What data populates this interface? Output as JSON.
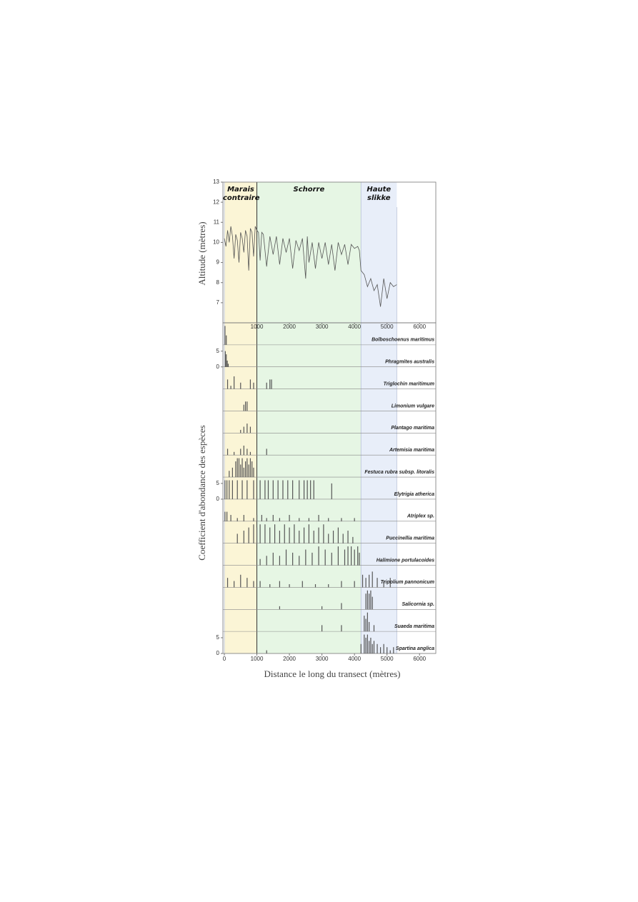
{
  "chart_data": [
    {
      "type": "line",
      "ylabel": "Altitude (mètres)",
      "xlim": [
        0,
        6500
      ],
      "ylim": [
        6,
        13
      ],
      "yticks": [
        7,
        8,
        9,
        10,
        11,
        12,
        13
      ],
      "xticks": [
        1000,
        2000,
        3000,
        4000,
        5000,
        6000
      ],
      "zones": [
        {
          "label": "Marais contraire",
          "start": 0,
          "end": 1000,
          "color": "#fbf5d6"
        },
        {
          "label": "Schorre",
          "start": 1000,
          "end": 4200,
          "color": "#e6f6e4"
        },
        {
          "label": "Haute slikke",
          "start": 4200,
          "end": 5300,
          "color": "#e8eef9"
        }
      ],
      "x": [
        0,
        50,
        100,
        150,
        200,
        250,
        300,
        350,
        400,
        450,
        500,
        550,
        600,
        650,
        700,
        750,
        800,
        850,
        900,
        950,
        1000,
        1050,
        1100,
        1150,
        1200,
        1300,
        1400,
        1500,
        1600,
        1700,
        1800,
        1900,
        2000,
        2100,
        2200,
        2300,
        2400,
        2500,
        2550,
        2600,
        2700,
        2800,
        2900,
        3000,
        3100,
        3200,
        3300,
        3400,
        3500,
        3600,
        3700,
        3800,
        3900,
        4000,
        4100,
        4150,
        4200,
        4300,
        4400,
        4500,
        4600,
        4700,
        4800,
        4900,
        5000,
        5100,
        5200,
        5300
      ],
      "series": [
        {
          "color": "#555555",
          "values": [
            10.2,
            9.8,
            10.6,
            10.0,
            10.8,
            10.3,
            9.2,
            10.4,
            10.1,
            9.0,
            10.5,
            10.2,
            9.5,
            10.6,
            10.3,
            8.6,
            10.7,
            10.5,
            9.3,
            10.8,
            10.6,
            10.5,
            9.1,
            10.5,
            10.4,
            8.8,
            10.3,
            9.4,
            10.3,
            8.9,
            10.2,
            9.5,
            10.2,
            8.7,
            10.1,
            9.6,
            10.2,
            8.2,
            10.3,
            9.0,
            10.0,
            8.7,
            10.0,
            9.2,
            10.0,
            8.9,
            9.9,
            8.6,
            10.0,
            9.4,
            9.9,
            8.9,
            9.9,
            9.7,
            9.8,
            9.6,
            8.6,
            8.4,
            7.8,
            8.2,
            7.6,
            7.9,
            6.8,
            8.2,
            7.2,
            8.0,
            7.8,
            7.9
          ]
        }
      ]
    },
    {
      "type": "strip",
      "xlabel": "Distance le long du transect (mètres)",
      "ylabel": "Coefficient d'abondance des espèces",
      "xlim": [
        0,
        6500
      ],
      "ylim": [
        0,
        7
      ],
      "xticks": [
        0,
        1000,
        2000,
        3000,
        4000,
        5000,
        6000
      ],
      "color": "#555555",
      "species": [
        {
          "name": "Bolboschoenus maritimus",
          "x": [
            20,
            60
          ],
          "values": [
            6,
            3
          ]
        },
        {
          "name": "Phragmites australis",
          "x": [
            30,
            60,
            90,
            120
          ],
          "values": [
            5,
            4,
            2,
            1
          ],
          "yticks": [
            0,
            5
          ]
        },
        {
          "name": "Triglochin maritimum",
          "x": [
            100,
            200,
            300,
            500,
            800,
            900,
            1300,
            1400,
            1450
          ],
          "values": [
            3,
            1,
            4,
            2,
            3,
            2,
            2,
            3,
            3
          ]
        },
        {
          "name": "Limonium vulgare",
          "x": [
            600,
            650,
            700
          ],
          "values": [
            2,
            3,
            3
          ]
        },
        {
          "name": "Plantago maritima",
          "x": [
            500,
            600,
            700,
            800
          ],
          "values": [
            1,
            2,
            3,
            2
          ]
        },
        {
          "name": "Artemisia maritima",
          "x": [
            100,
            300,
            500,
            600,
            700,
            800,
            1300
          ],
          "values": [
            2,
            1,
            2,
            3,
            2,
            1,
            2
          ]
        },
        {
          "name": "Festuca rubra subsp. litoralis",
          "x": [
            150,
            250,
            350,
            400,
            450,
            500,
            550,
            600,
            650,
            700,
            750,
            800,
            850,
            900
          ],
          "values": [
            2,
            3,
            5,
            6,
            6,
            4,
            6,
            3,
            5,
            6,
            4,
            6,
            5,
            3
          ]
        },
        {
          "name": "Elytrigia atherica",
          "x": [
            20,
            80,
            150,
            250,
            400,
            550,
            700,
            900,
            1100,
            1250,
            1350,
            1500,
            1650,
            1800,
            1950,
            2100,
            2300,
            2450,
            2550,
            2650,
            2750,
            3300
          ],
          "values": [
            6,
            6,
            6,
            6,
            6,
            6,
            6,
            6,
            6,
            6,
            6,
            6,
            6,
            6,
            6,
            6,
            6,
            6,
            6,
            6,
            6,
            5
          ],
          "yticks": [
            0,
            5
          ]
        },
        {
          "name": "Atriplex sp.",
          "x": [
            20,
            80,
            200,
            400,
            600,
            900,
            1000,
            1150,
            1300,
            1500,
            1700,
            2000,
            2300,
            2600,
            2900,
            3200,
            3600,
            4000
          ],
          "values": [
            3,
            3,
            2,
            1,
            2,
            1,
            2,
            2,
            1,
            2,
            1,
            2,
            1,
            1,
            2,
            1,
            1,
            1
          ]
        },
        {
          "name": "Puccinellia maritima",
          "x": [
            400,
            600,
            750,
            900,
            1000,
            1100,
            1250,
            1400,
            1550,
            1700,
            1850,
            2000,
            2150,
            2300,
            2450,
            2600,
            2750,
            2900,
            3050,
            3200,
            3350,
            3500,
            3650,
            3800,
            3950
          ],
          "values": [
            3,
            4,
            5,
            6,
            5,
            6,
            6,
            5,
            6,
            4,
            6,
            5,
            6,
            4,
            5,
            6,
            4,
            5,
            6,
            3,
            4,
            5,
            3,
            4,
            2
          ]
        },
        {
          "name": "Halimione portulacoides",
          "x": [
            1100,
            1300,
            1500,
            1700,
            1900,
            2100,
            2300,
            2500,
            2700,
            2900,
            3100,
            3300,
            3500,
            3700,
            3800,
            3900,
            4000,
            4100,
            4150
          ],
          "values": [
            2,
            3,
            4,
            3,
            5,
            4,
            3,
            5,
            4,
            6,
            5,
            4,
            6,
            5,
            6,
            6,
            5,
            6,
            4
          ]
        },
        {
          "name": "Tripolium pannonicum",
          "x": [
            100,
            300,
            500,
            700,
            900,
            1100,
            1400,
            1700,
            2000,
            2400,
            2800,
            3200,
            3600,
            4000,
            4250,
            4350,
            4450,
            4550,
            4700,
            4900,
            5100
          ],
          "values": [
            3,
            2,
            4,
            3,
            2,
            2,
            1,
            2,
            1,
            2,
            1,
            1,
            2,
            2,
            4,
            3,
            4,
            5,
            3,
            2,
            3
          ]
        },
        {
          "name": "Salicornia sp.",
          "x": [
            1700,
            3000,
            3600,
            4350,
            4400,
            4450,
            4500,
            4550
          ],
          "values": [
            1,
            1,
            2,
            5,
            6,
            5,
            6,
            4
          ]
        },
        {
          "name": "Suaeda maritima",
          "x": [
            3000,
            3600,
            4300,
            4350,
            4400,
            4450,
            4600
          ],
          "values": [
            2,
            2,
            5,
            4,
            6,
            3,
            2
          ]
        },
        {
          "name": "Spartina anglica",
          "x": [
            1300,
            4200,
            4300,
            4350,
            4400,
            4450,
            4500,
            4550,
            4600,
            4700,
            4800,
            4900,
            5000,
            5100,
            5200
          ],
          "values": [
            1,
            3,
            6,
            5,
            6,
            4,
            5,
            3,
            4,
            3,
            2,
            3,
            2,
            1,
            2
          ],
          "yticks": [
            0,
            5
          ]
        }
      ]
    }
  ]
}
